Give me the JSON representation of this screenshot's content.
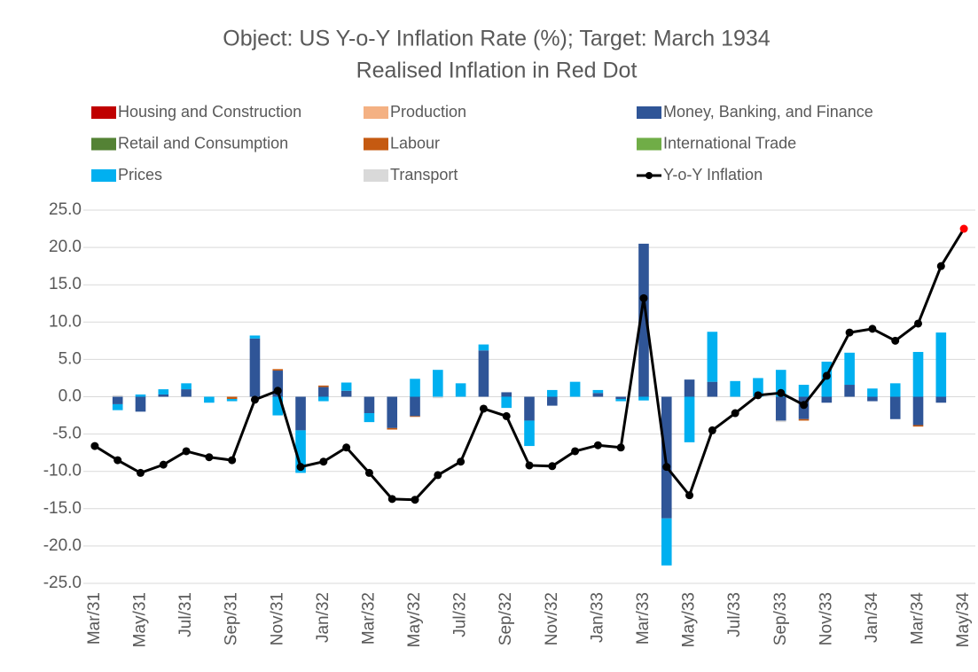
{
  "chart_data": {
    "type": "bar",
    "title": "Object: US Y-o-Y Inflation Rate (%); Target: March 1934",
    "subtitle": "Realised Inflation in Red Dot",
    "categories": [
      "Mar/31",
      null,
      "May/31",
      null,
      "Jul/31",
      null,
      "Sep/31",
      null,
      "Nov/31",
      null,
      "Jan/32",
      null,
      "Mar/32",
      null,
      "May/32",
      null,
      "Jul/32",
      null,
      "Sep/32",
      null,
      "Nov/32",
      null,
      "Jan/33",
      null,
      "Mar/33",
      null,
      "May/33",
      null,
      "Jul/33",
      null,
      "Sep/33",
      null,
      "Nov/33",
      null,
      "Jan/34",
      null,
      "Mar/34",
      null,
      "May/34"
    ],
    "ylim": [
      -25,
      25
    ],
    "yticks": [
      {
        "value": -25,
        "label": "-25.0"
      },
      {
        "value": -20,
        "label": "-20.0"
      },
      {
        "value": -15,
        "label": "-15.0"
      },
      {
        "value": -10,
        "label": "-10.0"
      },
      {
        "value": -5,
        "label": "-5.0"
      },
      {
        "value": 0,
        "label": "0.0"
      },
      {
        "value": 5,
        "label": "5.0"
      },
      {
        "value": 10,
        "label": "10.0"
      },
      {
        "value": 15,
        "label": "15.0"
      },
      {
        "value": 20,
        "label": "20.0"
      },
      {
        "value": 25,
        "label": "25.0"
      }
    ],
    "grid": true,
    "series": [
      {
        "name": "Housing and Construction",
        "color": "#c00000",
        "values": [
          0,
          0,
          0,
          0,
          0,
          0,
          0,
          0,
          0,
          0,
          0,
          0,
          0,
          0,
          0,
          0,
          0,
          0,
          0,
          0,
          0,
          0,
          0,
          0,
          0,
          0,
          0,
          0,
          0,
          0,
          0,
          0,
          0,
          0,
          0,
          0,
          0,
          0,
          0
        ]
      },
      {
        "name": "Production",
        "color": "#f4b183",
        "values": [
          0,
          0,
          0,
          0,
          0,
          0,
          0,
          0,
          0,
          0,
          0,
          0,
          0,
          0,
          0,
          0,
          0,
          0,
          0,
          0,
          0,
          0,
          0,
          0,
          0,
          0,
          0,
          0,
          0,
          0,
          0,
          0,
          0,
          0,
          0,
          0,
          0,
          0,
          0
        ]
      },
      {
        "name": "Money, Banking, and Finance",
        "color": "#2f5597",
        "values": [
          0,
          -1.0,
          -2.0,
          0.3,
          1.0,
          0,
          0,
          7.8,
          3.5,
          -4.5,
          1.3,
          0.8,
          -2.2,
          -4.2,
          -2.6,
          0,
          0,
          6.2,
          0.6,
          -3.2,
          -1.2,
          0,
          0.5,
          -0.3,
          20.5,
          -16.3,
          2.3,
          2.0,
          0,
          0,
          -3.2,
          -3.0,
          -0.8,
          1.6,
          -0.6,
          -3.0,
          -3.8,
          -0.8,
          0
        ]
      },
      {
        "name": "Retail and Consumption",
        "color": "#548235",
        "values": [
          0,
          0,
          0,
          0,
          0,
          0,
          0,
          0,
          0,
          0,
          0,
          0,
          0,
          0,
          0,
          0,
          0,
          0,
          0,
          0,
          0,
          0,
          0,
          0,
          0,
          0,
          0,
          0,
          0,
          0,
          0,
          0,
          0,
          0,
          0,
          0,
          0,
          0,
          0
        ]
      },
      {
        "name": "Labour",
        "color": "#c55a11",
        "values": [
          0,
          0,
          0,
          0,
          0,
          0,
          -0.3,
          0,
          0.2,
          0,
          0.2,
          0,
          0,
          -0.2,
          -0.1,
          0,
          0,
          0,
          0,
          0,
          0,
          0,
          0,
          0,
          0,
          0,
          0,
          0,
          0,
          0,
          0,
          -0.2,
          0,
          0,
          0,
          0,
          -0.2,
          0,
          0
        ]
      },
      {
        "name": "International Trade",
        "color": "#70ad47",
        "values": [
          0,
          0,
          0,
          0,
          0,
          0,
          0,
          0,
          0,
          0,
          0,
          0,
          0,
          0,
          0,
          0,
          0,
          0,
          0,
          0,
          0,
          0,
          0,
          0,
          0,
          0,
          0,
          0,
          0,
          0,
          0,
          0,
          0,
          0,
          0,
          0,
          0,
          0,
          0
        ]
      },
      {
        "name": "Prices",
        "color": "#00b0f0",
        "values": [
          0,
          -0.8,
          0.3,
          0.7,
          0.8,
          -0.8,
          -0.3,
          0.4,
          -2.5,
          -5.7,
          -0.6,
          1.1,
          -1.2,
          0,
          2.4,
          3.6,
          1.8,
          0.8,
          -1.5,
          -3.4,
          0.9,
          2.0,
          0.4,
          -0.3,
          -0.5,
          -6.3,
          -6.1,
          6.7,
          2.1,
          2.5,
          3.6,
          1.6,
          4.7,
          4.3,
          1.1,
          1.8,
          6.0,
          8.6,
          0
        ]
      },
      {
        "name": "Transport",
        "color": "#d9d9d9",
        "values": [
          0,
          0.2,
          0,
          0,
          0,
          0,
          0,
          0,
          0,
          0,
          0,
          0,
          0,
          0,
          0,
          -0.2,
          0,
          0,
          0,
          0,
          0,
          0,
          0,
          0,
          0,
          0,
          0,
          0,
          0,
          0,
          -0.2,
          0,
          0,
          0,
          0,
          0,
          0,
          0,
          0
        ]
      },
      {
        "name": "Y-o-Y Inflation",
        "type": "line",
        "color": "#000000",
        "last_marker_color": "#ff0000",
        "values": [
          -6.6,
          -8.5,
          -10.2,
          -9.1,
          -7.3,
          -8.1,
          -8.5,
          -0.4,
          0.8,
          -9.4,
          -8.7,
          -6.8,
          -10.2,
          -13.7,
          -13.8,
          -10.5,
          -8.7,
          -1.6,
          -2.6,
          -9.2,
          -9.3,
          -7.3,
          -6.5,
          -6.8,
          13.2,
          -9.4,
          -13.2,
          -4.5,
          -2.2,
          0.2,
          0.5,
          -1.1,
          2.8,
          8.6,
          9.1,
          7.5,
          9.8,
          17.5,
          22.5
        ]
      }
    ]
  }
}
